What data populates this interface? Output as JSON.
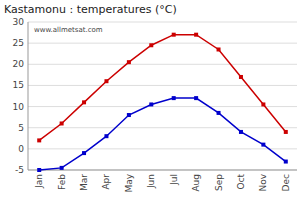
{
  "chart_data": {
    "type": "line",
    "title": "Kastamonu : temperatures (°C)",
    "categories": [
      "Jan",
      "Feb",
      "Mar",
      "Apr",
      "May",
      "Jun",
      "Jul",
      "Aug",
      "Sep",
      "Oct",
      "Nov",
      "Dec"
    ],
    "series": [
      {
        "color": "#cc0000",
        "marker": "square",
        "values": [
          2,
          6,
          11,
          16,
          20.5,
          24.5,
          27,
          27,
          23.5,
          17,
          10.5,
          4
        ]
      },
      {
        "color": "#0000cc",
        "marker": "square",
        "values": [
          -5,
          -4.5,
          -1,
          3,
          8,
          10.5,
          12,
          12,
          8.5,
          4,
          1,
          -3
        ]
      }
    ],
    "ylim": [
      -5,
      30
    ],
    "yticks": [
      -5,
      0,
      5,
      10,
      15,
      20,
      25,
      30
    ],
    "grid": true,
    "annotations": [
      "www.allmetsat.com"
    ]
  }
}
